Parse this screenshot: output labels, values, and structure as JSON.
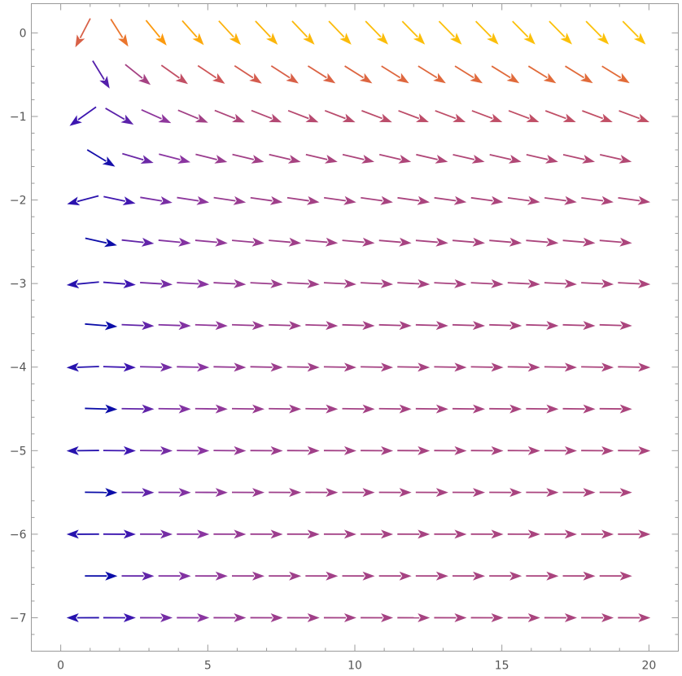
{
  "chart_data": {
    "type": "vector_field",
    "title": "",
    "xlabel": "",
    "ylabel": "",
    "xlim": [
      -1,
      21
    ],
    "ylim": [
      -7.4,
      0.35
    ],
    "x_ticks": [
      0,
      5,
      10,
      15,
      20
    ],
    "x_tick_labels": [
      "0",
      "5",
      "10",
      "15",
      "20"
    ],
    "x_minor_ticks": [
      1,
      2,
      3,
      4,
      6,
      7,
      8,
      9,
      11,
      12,
      13,
      14,
      16,
      17,
      18,
      19,
      21
    ],
    "y_ticks": [
      0,
      -1,
      -2,
      -3,
      -4,
      -5,
      -6,
      -7
    ],
    "y_tick_labels": [
      "0",
      "−1",
      "−2",
      "−3",
      "−4",
      "−5",
      "−6",
      "−7"
    ],
    "y_minor_ticks": [
      -0.2,
      -0.4,
      -0.6,
      -0.8,
      -1.2,
      -1.4,
      -1.6,
      -1.8,
      -2.2,
      -2.4,
      -2.6,
      -2.8,
      -3.2,
      -3.4,
      -3.6,
      -3.8,
      -4.2,
      -4.4,
      -4.6,
      -4.8,
      -5.2,
      -5.6,
      -5.8,
      -6.2,
      -6.4,
      -6.6,
      -6.8,
      -7.2
    ],
    "grid": false,
    "legend": "none",
    "sampling": {
      "x_start": 0.75,
      "x_step": 0.625,
      "x_count": 31,
      "y_start": 0.0,
      "y_step": -0.5,
      "y_count": 15,
      "staggered": true
    },
    "field": {
      "u": "1 - x^-1.45",
      "v": "-e^y",
      "magnitude": "sqrt(u^2 + v^2)"
    },
    "color_scale": {
      "stops": [
        {
          "t": 0.0,
          "color": "#0b0da8"
        },
        {
          "t": 0.25,
          "color": "#3b15b0"
        },
        {
          "t": 0.5,
          "color": "#8a35a0"
        },
        {
          "t": 0.7,
          "color": "#cf5656"
        },
        {
          "t": 0.85,
          "color": "#fd8b0f"
        },
        {
          "t": 1.0,
          "color": "#fbc10a"
        }
      ]
    }
  }
}
